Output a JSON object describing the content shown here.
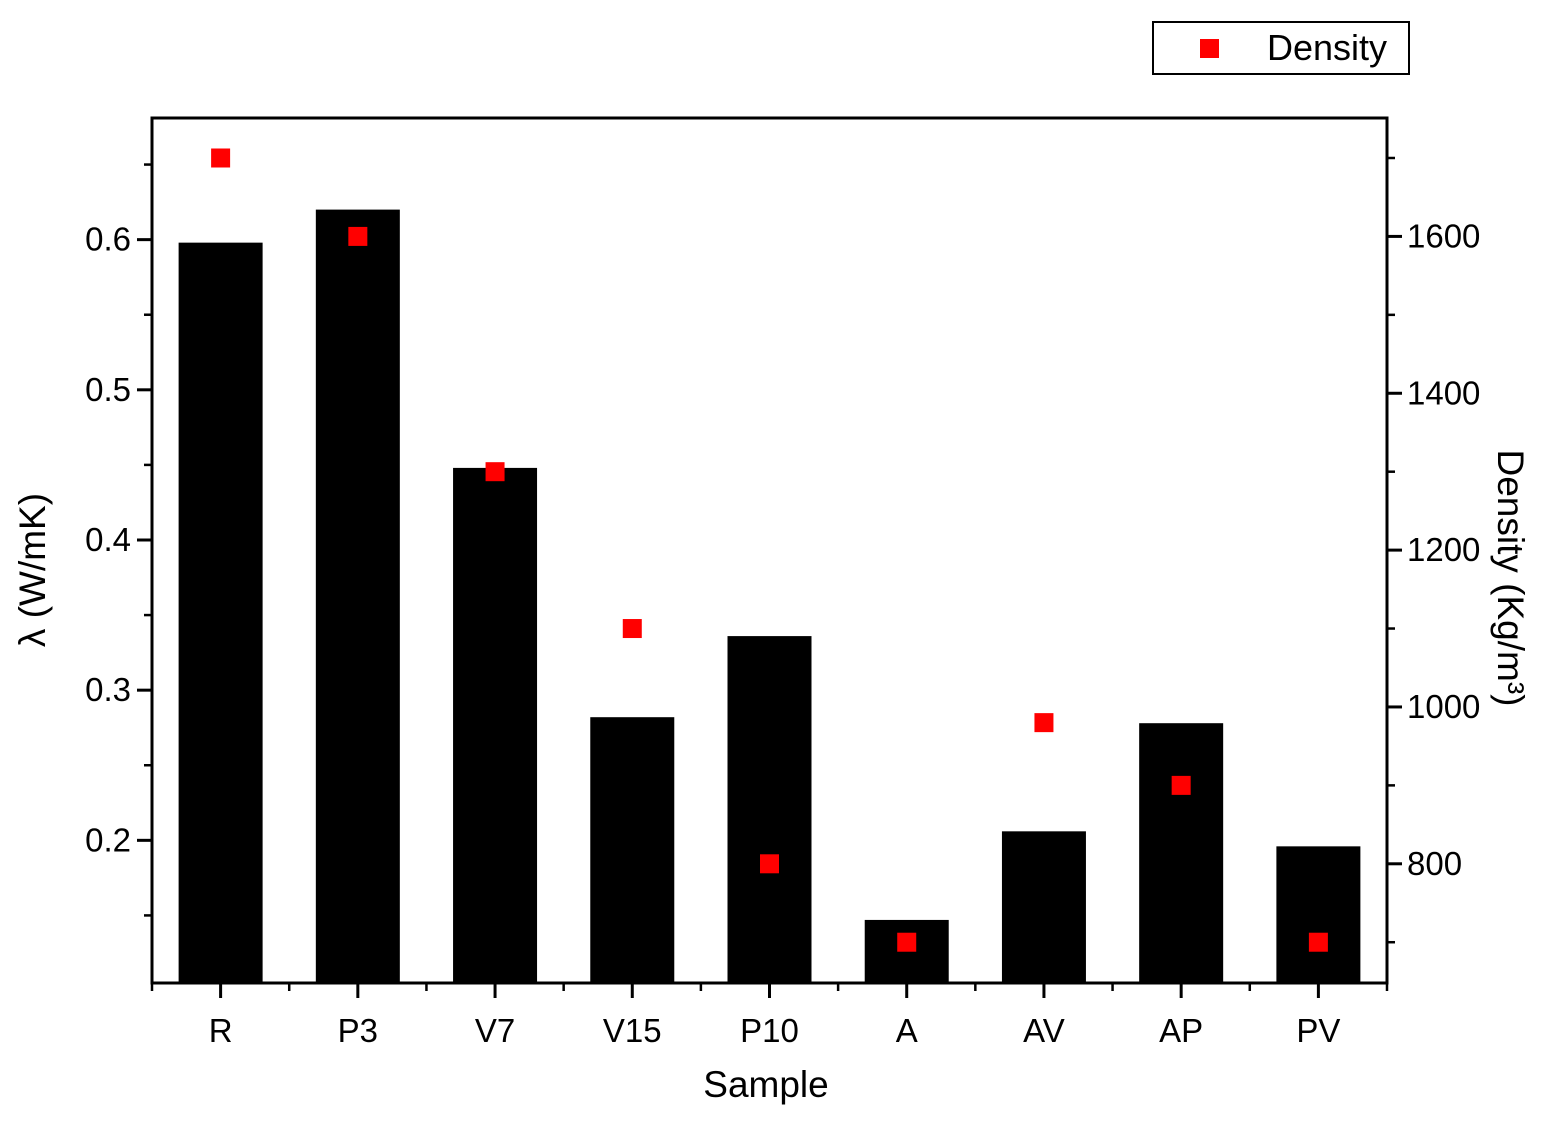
{
  "chart_data": {
    "type": "bar",
    "title": "",
    "xlabel": "Sample",
    "categories": [
      "R",
      "P3",
      "V7",
      "V15",
      "P10",
      "A",
      "AV",
      "AP",
      "PV"
    ],
    "series": [
      {
        "name": "lambda",
        "plot": "bar",
        "axis": "left",
        "color": "#000000",
        "values": [
          0.598,
          0.62,
          0.448,
          0.282,
          0.336,
          0.147,
          0.206,
          0.278,
          0.196
        ]
      },
      {
        "name": "Density",
        "plot": "scatter",
        "marker": "square",
        "axis": "right",
        "color": "#ff0000",
        "values": [
          1700,
          1600,
          1300,
          1100,
          800,
          700,
          980,
          900,
          700
        ]
      }
    ],
    "left_axis": {
      "label": "λ (W/mK)",
      "min": 0.105,
      "max": 0.681,
      "major_ticks": [
        0.2,
        0.3,
        0.4,
        0.5,
        0.6
      ],
      "tick_labels": [
        "0.2",
        "0.3",
        "0.4",
        "0.5",
        "0.6"
      ],
      "minor_ticks": [
        0.15,
        0.25,
        0.35,
        0.45,
        0.55,
        0.65
      ]
    },
    "right_axis": {
      "label": "Density (Kg/m³)",
      "min": 648,
      "max": 1751,
      "major_ticks": [
        800,
        1000,
        1200,
        1400,
        1600
      ],
      "tick_labels": [
        "800",
        "1000",
        "1200",
        "1400",
        "1600"
      ],
      "minor_ticks": [
        700,
        900,
        1100,
        1300,
        1500,
        1700
      ]
    },
    "legend": {
      "position": "top-right",
      "entries": [
        {
          "label": "Density",
          "marker": "square",
          "color": "#ff0000"
        }
      ]
    },
    "grid": false,
    "background": "#ffffff",
    "frame_color": "#000000"
  }
}
